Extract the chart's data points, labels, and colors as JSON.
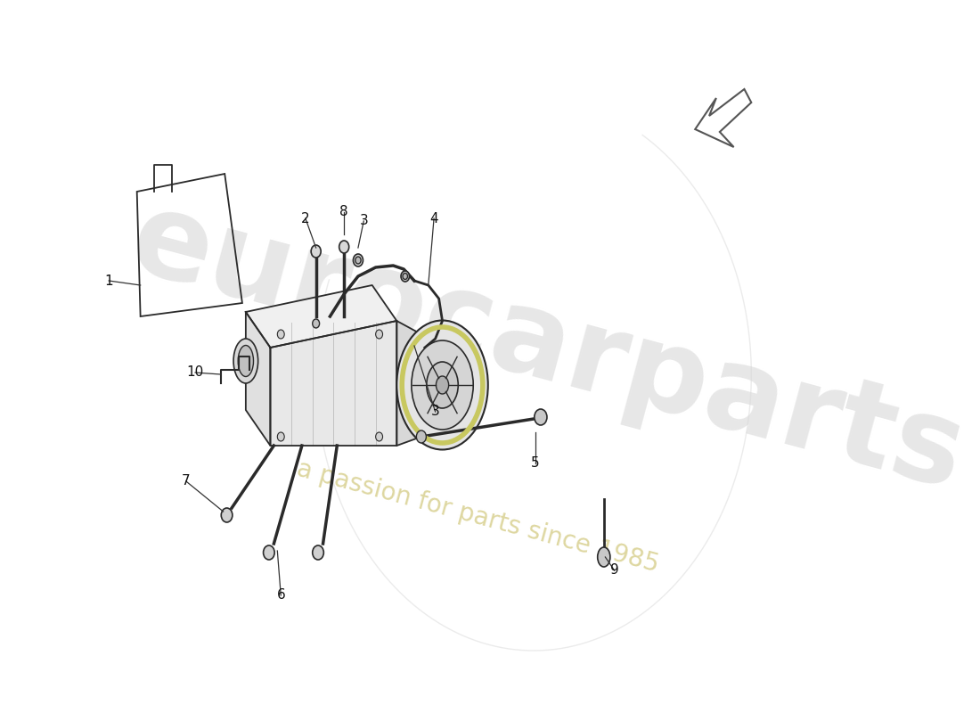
{
  "background_color": "#ffffff",
  "line_color": "#2a2a2a",
  "highlight_color": "#c8c860",
  "watermark1": "eurocarparts",
  "watermark2": "a passion for parts since 1985",
  "wm1_color": "#d8d8d8",
  "wm2_color": "#d8d090"
}
